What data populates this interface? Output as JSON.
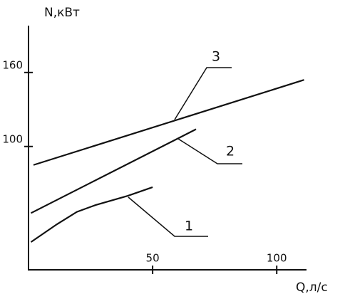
{
  "chart_data": {
    "type": "line",
    "x_label": "Q,л/с",
    "y_label": "N,кВт",
    "xlim": [
      0,
      112
    ],
    "ylim": [
      0,
      198
    ],
    "xticks": [
      50,
      100
    ],
    "yticks": [
      100,
      160
    ],
    "series": [
      {
        "name": "1",
        "color": "#111111",
        "x": [
          1,
          11.5,
          19.5,
          27,
          40,
          50
        ],
        "values": [
          22.5,
          37,
          47,
          52.5,
          60,
          67
        ]
      },
      {
        "name": "2",
        "color": "#111111",
        "x": [
          1,
          67.5
        ],
        "values": [
          46,
          114
        ]
      },
      {
        "name": "3",
        "color": "#111111",
        "x": [
          2,
          111
        ],
        "values": [
          85,
          154
        ]
      }
    ]
  }
}
